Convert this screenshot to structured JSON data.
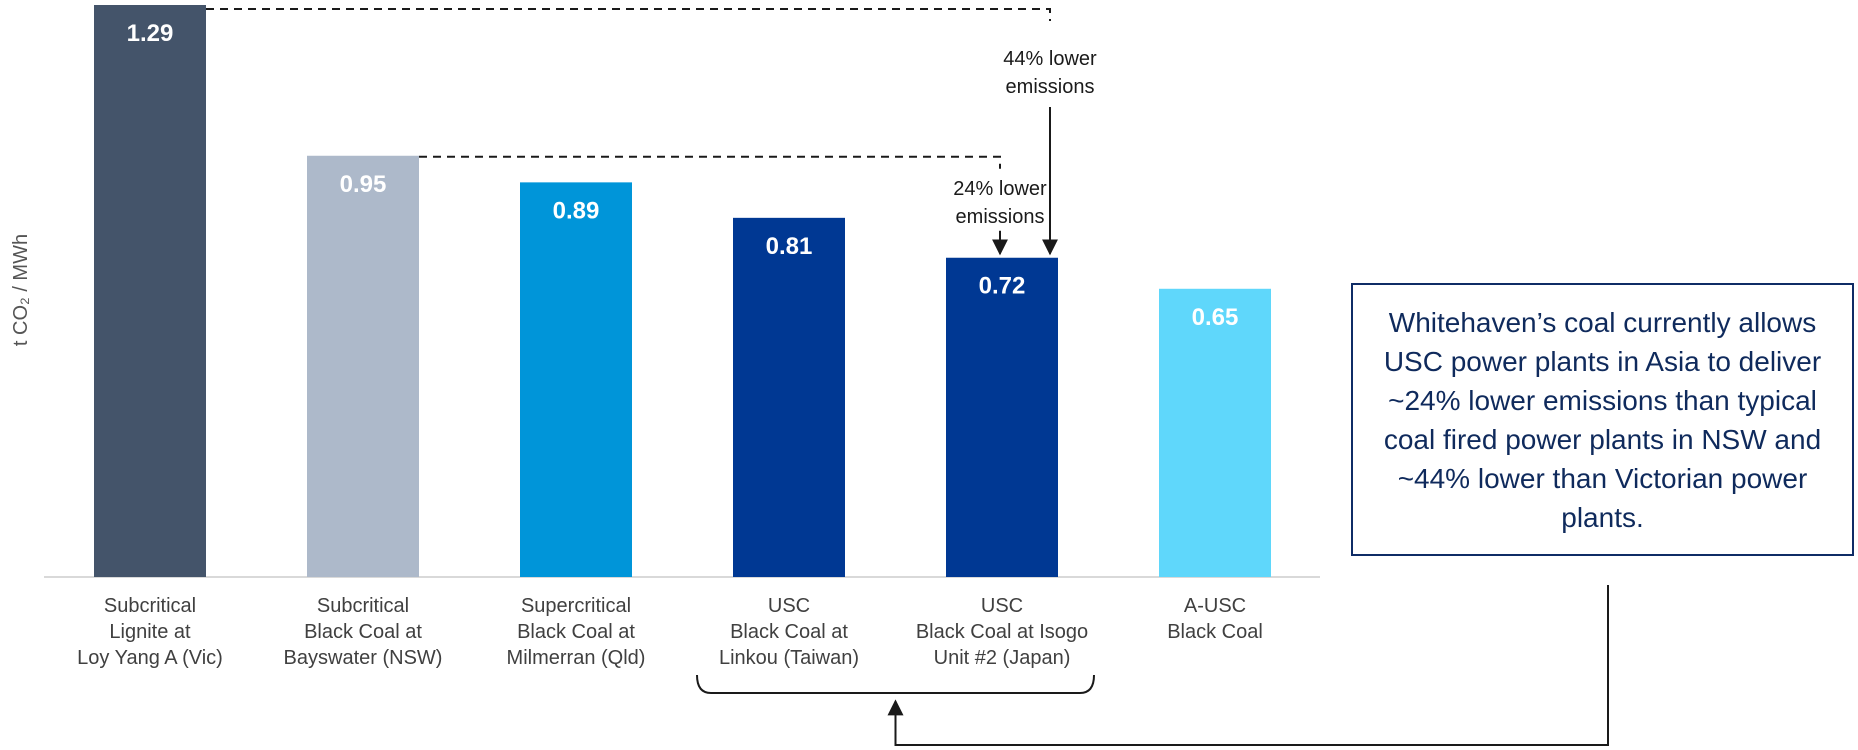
{
  "chart_data": {
    "type": "bar",
    "ylabel": "t CO₂ / MWh",
    "ylim": [
      0,
      1.29
    ],
    "grid": false,
    "categories": [
      [
        "Subcritical",
        "Lignite at",
        "Loy Yang A (Vic)"
      ],
      [
        "Subcritical",
        "Black Coal at",
        "Bayswater (NSW)"
      ],
      [
        "Supercritical",
        "Black Coal at",
        "Milmerran (Qld)"
      ],
      [
        "USC",
        "Black Coal at",
        "Linkou (Taiwan)"
      ],
      [
        "USC",
        "Black Coal at Isogo",
        "Unit #2 (Japan)"
      ],
      [
        "A-USC",
        "Black Coal"
      ]
    ],
    "values": [
      1.29,
      0.95,
      0.89,
      0.81,
      0.72,
      0.65
    ],
    "value_labels": [
      "1.29",
      "0.95",
      "0.89",
      "0.81",
      "0.72",
      "0.65"
    ],
    "colors": [
      "#44546a",
      "#adb9ca",
      "#0095d9",
      "#003893",
      "#003893",
      "#5fd7fb"
    ],
    "annotations": [
      {
        "text": [
          "44% lower",
          "emissions"
        ],
        "from_index": 0,
        "to_index": 4
      },
      {
        "text": [
          "24% lower",
          "emissions"
        ],
        "from_index": 1,
        "to_index": 4
      }
    ],
    "bracket_indices": [
      3,
      4
    ]
  },
  "callout": {
    "text": "Whitehaven’s coal currently allows USC power plants in Asia to deliver ~24% lower emissions than typical coal fired power plants in NSW and ~44% lower than Victorian power plants."
  }
}
